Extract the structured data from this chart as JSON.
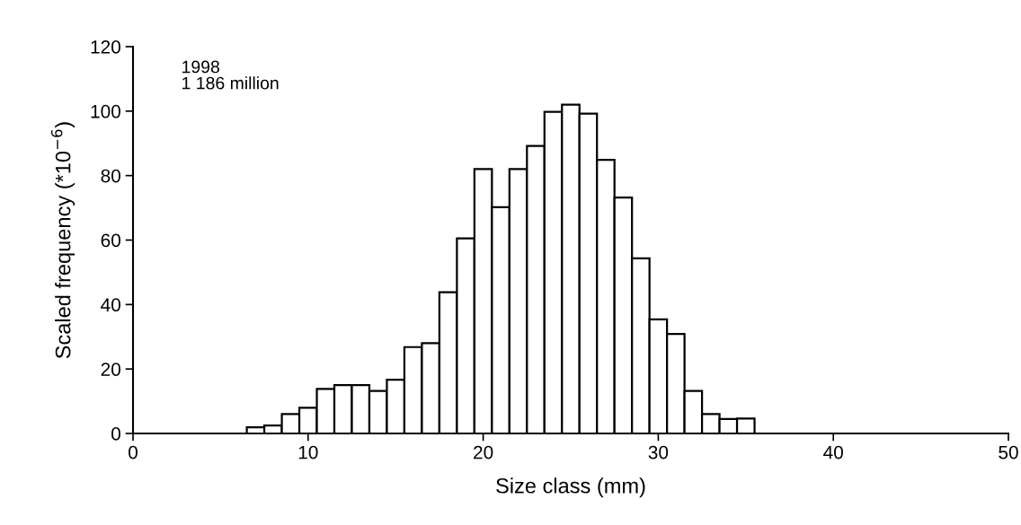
{
  "chart_data": {
    "type": "histogram",
    "xlabel": "Size class (mm)",
    "ylabel": "Scaled frequency (*10$^{−6}$)",
    "annotations": [
      "1998\n1 186 million"
    ],
    "bins": [
      4.5,
      5.5,
      6.5,
      7.5,
      8.5,
      9.5,
      10.5,
      11.5,
      12.5,
      13.5,
      14.5,
      15.5,
      16.5,
      17.5,
      18.5,
      19.5,
      20.5,
      21.5,
      22.5,
      23.5,
      24.5,
      25.5,
      26.5,
      27.5,
      28.5,
      29.5,
      30.5,
      31.5,
      32.5,
      33.5,
      34.5,
      35.5
    ],
    "values": [
      null,
      null,
      1.9,
      2.5,
      6,
      8,
      13.8,
      15,
      15,
      13.2,
      16.7,
      26.8,
      28,
      43.8,
      60.5,
      82,
      70.2,
      82,
      89.2,
      99.8,
      102,
      99.2,
      84.9,
      73.2,
      54.3,
      35.4,
      30.9,
      13.2,
      6,
      4.5,
      4.6
    ],
    "color": "#ffffff",
    "xlim": [
      0,
      50
    ],
    "ylim": [
      0,
      120
    ],
    "xticks": [
      0,
      10,
      20,
      30,
      40,
      50
    ],
    "yticks": [
      0,
      20,
      40,
      60,
      80,
      100,
      120
    ],
    "grid": false,
    "legend": false
  }
}
